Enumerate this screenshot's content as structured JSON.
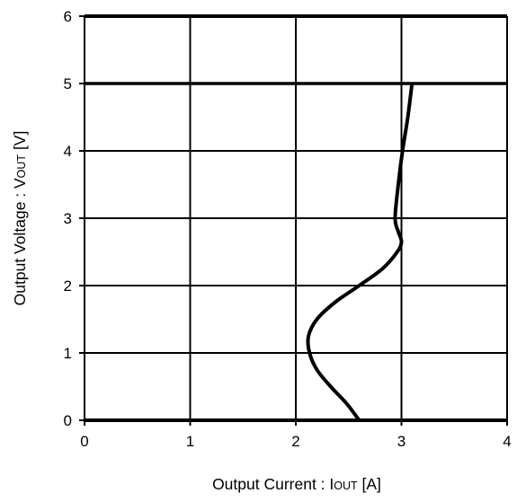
{
  "chart_data": {
    "type": "line",
    "title": "",
    "xlabel": {
      "main": "Output Current : I",
      "subscript": "OUT",
      "unit": " [A]"
    },
    "ylabel": {
      "main": "Output Voltage : V",
      "subscript": "OUT",
      "unit": " [V]"
    },
    "xlim": [
      0,
      4
    ],
    "ylim": [
      0,
      6
    ],
    "x_ticks": [
      0,
      1,
      2,
      3,
      4
    ],
    "y_ticks": [
      0,
      1,
      2,
      3,
      4,
      5,
      6
    ],
    "x_tick_labels": [
      "0",
      "1",
      "2",
      "3",
      "4"
    ],
    "y_tick_labels": [
      "0",
      "1",
      "2",
      "3",
      "4",
      "5",
      "6"
    ],
    "grid": true,
    "legend": "none",
    "series": [
      {
        "color": "#000000",
        "points": [
          {
            "x": 2.6,
            "y": 0.0
          },
          {
            "x": 2.48,
            "y": 0.25
          },
          {
            "x": 2.33,
            "y": 0.5
          },
          {
            "x": 2.2,
            "y": 0.75
          },
          {
            "x": 2.13,
            "y": 1.0
          },
          {
            "x": 2.12,
            "y": 1.25
          },
          {
            "x": 2.2,
            "y": 1.5
          },
          {
            "x": 2.37,
            "y": 1.75
          },
          {
            "x": 2.6,
            "y": 2.0
          },
          {
            "x": 2.82,
            "y": 2.25
          },
          {
            "x": 2.96,
            "y": 2.5
          },
          {
            "x": 3.0,
            "y": 2.65
          },
          {
            "x": 2.97,
            "y": 2.8
          },
          {
            "x": 2.94,
            "y": 3.0
          },
          {
            "x": 2.97,
            "y": 3.5
          },
          {
            "x": 3.01,
            "y": 4.0
          },
          {
            "x": 3.06,
            "y": 4.5
          },
          {
            "x": 3.1,
            "y": 5.0
          }
        ]
      }
    ]
  }
}
